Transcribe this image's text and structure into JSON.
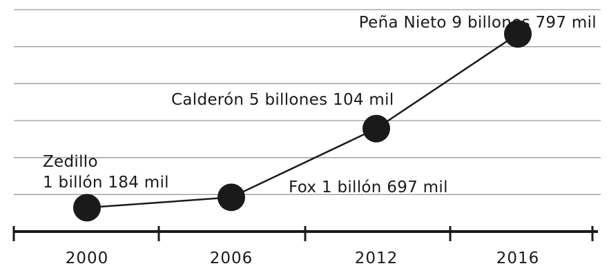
{
  "chart_data": {
    "type": "line",
    "categories": [
      "2000",
      "2006",
      "2012",
      "2016"
    ],
    "values": [
      1.184,
      1.697,
      5.104,
      9.797
    ],
    "ylim": [
      0,
      11
    ],
    "grid": true,
    "annotations": [
      [
        "Zedillo",
        "1 billón 184 mil"
      ],
      [
        "Fox 1 billón 697 mil"
      ],
      [
        "Calderón 5 billones 104 mil"
      ],
      [
        "Peña Nieto 9 billones 797 mil"
      ]
    ],
    "colors": {
      "line": "#1a1a1a",
      "marker": "#1a1a1a",
      "grid": "#9a9a9a",
      "axis": "#1a1a1a"
    }
  }
}
